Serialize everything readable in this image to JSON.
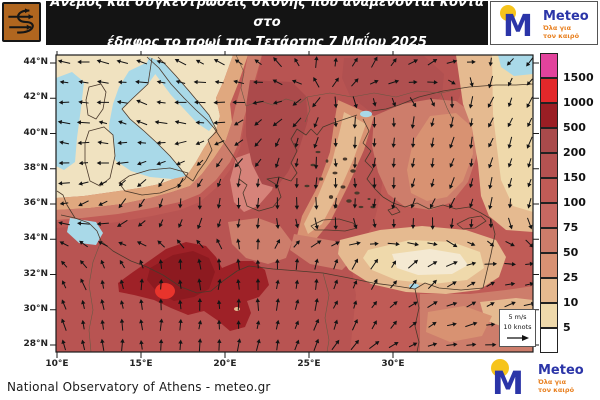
{
  "header": {
    "title_line1": "Άνεμος και συγκεντρώσεις σκόνης που αναμένονται κοντά στο",
    "title_line2": "έδαφος το πρωί της Τετάρτης 7 Μαΐου 2025"
  },
  "brand": {
    "name": "Meteo",
    "tagline_line1": "Όλα για",
    "tagline_line2": "τον καιρό",
    "blue": "#2b35a8",
    "orange": "#e87f1e",
    "yellow": "#f6c41c"
  },
  "icons": {
    "header_icon": "wind-swirl-icon",
    "brand_icon": "meteo-m-logo"
  },
  "map": {
    "x_ticks": [
      "10°E",
      "15°E",
      "20°E",
      "25°E",
      "30°E"
    ],
    "y_ticks": [
      "44°N",
      "42°N",
      "40°N",
      "38°N",
      "36°N",
      "34°N",
      "32°N",
      "30°N",
      "28°N"
    ],
    "wind_legend": {
      "line1": "5 m/s",
      "line2": "10 knots"
    },
    "sea_color": "#a9d9e8",
    "wind_grid": {
      "note": "u,v screen vectors (y down), 5 rows x 6 cols spanning map",
      "rows": [
        [
          [
            -1,
            -0.09
          ],
          [
            -0.97,
            -0.26
          ],
          [
            -0.87,
            -0.5
          ],
          [
            0.3,
            -0.95
          ],
          [
            0.87,
            -0.5
          ],
          [
            -0.71,
            0.71
          ]
        ],
        [
          [
            -1,
            -0.09
          ],
          [
            -0.97,
            -0.26
          ],
          [
            -0.87,
            0.5
          ],
          [
            0,
            1
          ],
          [
            -0.17,
            0.98
          ],
          [
            -0.5,
            0.87
          ]
        ],
        [
          [
            -1,
            0
          ],
          [
            -0.34,
            0.94
          ],
          [
            0,
            1
          ],
          [
            0,
            1
          ],
          [
            -0.34,
            0.94
          ],
          [
            -0.17,
            0.98
          ]
        ],
        [
          [
            -0.64,
            -0.77
          ],
          [
            0,
            -1
          ],
          [
            0,
            -1
          ],
          [
            0.26,
            -0.97
          ],
          [
            0.77,
            -0.64
          ],
          [
            0.98,
            -0.17
          ]
        ],
        [
          [
            -0.17,
            -0.98
          ],
          [
            0,
            -1
          ],
          [
            0.09,
            -1
          ],
          [
            0.5,
            -0.87
          ],
          [
            0.97,
            -0.26
          ],
          [
            1,
            -0.09
          ]
        ]
      ]
    }
  },
  "legend": {
    "values": [
      "1500",
      "1000",
      "500",
      "200",
      "150",
      "100",
      "75",
      "50",
      "25",
      "10",
      "5"
    ],
    "colors": [
      "#e2439c",
      "#e3282a",
      "#9a1e24",
      "#a94a4b",
      "#b55251",
      "#c05b56",
      "#c76861",
      "#cc7c6a",
      "#d89173",
      "#e5b98f",
      "#efd9ab",
      "#ffffff"
    ]
  },
  "footer": {
    "credit": "National Observatory of Athens - meteo.gr"
  }
}
